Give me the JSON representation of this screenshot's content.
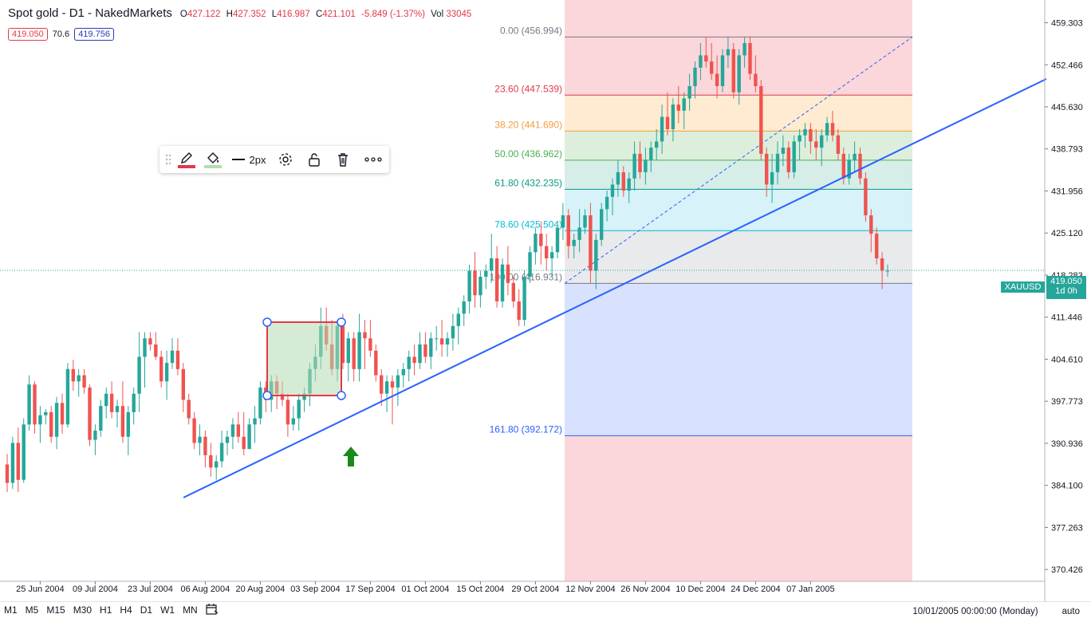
{
  "header": {
    "title": "Spot gold - D1 - NakedMarkets",
    "ohlc": [
      {
        "label": "O",
        "value": "427.122"
      },
      {
        "label": "H",
        "value": "427.352"
      },
      {
        "label": "L",
        "value": "416.987"
      },
      {
        "label": "C",
        "value": "421.101"
      }
    ],
    "change": "-5.849 (-1.37%)",
    "vol_label": "Vol",
    "vol_value": "33045"
  },
  "badges": {
    "left": "419.050",
    "mid": "70.6",
    "right": "419.756",
    "left_color": "#e0394a",
    "right_color": "#2a3bb5"
  },
  "toolbar": {
    "width_label": "2px",
    "icons": [
      "drag-handle-icon",
      "pencil-icon",
      "fill-bucket-icon",
      "line-style-icon",
      "gear-icon",
      "unlock-icon",
      "trash-icon",
      "more-icon"
    ]
  },
  "timeframes": [
    "M1",
    "M5",
    "M15",
    "M30",
    "H1",
    "H4",
    "D1",
    "W1",
    "MN"
  ],
  "footer": {
    "datetime": "10/01/2005 00:00:00 (Monday)",
    "scale": "auto"
  },
  "price_label": {
    "symbol": "XAUUSD",
    "price": "419.050",
    "timer": "1d 0h"
  },
  "chart_data": {
    "type": "candlestick",
    "symbol": "XAUUSD",
    "timeframe": "D1",
    "y_range": [
      368.5,
      463.0
    ],
    "y_ticks": [
      "459.303",
      "452.466",
      "445.630",
      "438.793",
      "431.956",
      "425.120",
      "418.283",
      "411.446",
      "404.610",
      "397.773",
      "390.936",
      "384.100",
      "377.263",
      "370.426"
    ],
    "x_ticks": [
      "25 Jun 2004",
      "09 Jul 2004",
      "23 Jul 2004",
      "06 Aug 2004",
      "20 Aug 2004",
      "03 Sep 2004",
      "17 Sep 2004",
      "01 Oct 2004",
      "15 Oct 2004",
      "29 Oct 2004",
      "12 Nov 2004",
      "26 Nov 2004",
      "10 Dec 2004",
      "24 Dec 2004",
      "07 Jan 2005"
    ],
    "current_price": 419.05,
    "fibonacci": {
      "levels": [
        {
          "ratio": "0.00",
          "price": 456.994,
          "label": "0.00 (456.994)",
          "color": "#787b86"
        },
        {
          "ratio": "23.60",
          "price": 447.539,
          "label": "23.60 (447.539)",
          "color": "#e0394a"
        },
        {
          "ratio": "38.20",
          "price": 441.69,
          "label": "38.20 (441.690)",
          "color": "#f29d38"
        },
        {
          "ratio": "50.00",
          "price": 436.962,
          "label": "50.00 (436.962)",
          "color": "#4caf50"
        },
        {
          "ratio": "61.80",
          "price": 432.235,
          "label": "61.80 (432.235)",
          "color": "#089981"
        },
        {
          "ratio": "78.60",
          "price": 425.504,
          "label": "78.60 (425.504)",
          "color": "#00bcd4"
        },
        {
          "ratio": "100.00",
          "price": 416.931,
          "label": "100.00 (416.931)",
          "color": "#787b86"
        },
        {
          "ratio": "161.80",
          "price": 392.172,
          "label": "161.80 (392.172)",
          "color": "#2962ff"
        }
      ],
      "zone_colors": [
        "#f7a5ad",
        "#fcd39a",
        "#b4dbb2",
        "#a5d8cc",
        "#a6e3ef",
        "#cfd0d4",
        "#a9bdfb",
        "#f7a5ad"
      ]
    },
    "candles": [
      [
        387.5,
        389.2,
        383,
        384.5
      ],
      [
        384.5,
        392,
        383.5,
        391
      ],
      [
        391,
        393.5,
        383,
        385
      ],
      [
        385,
        395,
        384.5,
        394
      ],
      [
        394,
        402,
        393,
        400.5
      ],
      [
        400.5,
        401,
        392.5,
        394
      ],
      [
        394,
        397,
        391,
        395.5
      ],
      [
        395.5,
        396.5,
        394,
        396
      ],
      [
        396,
        397,
        391,
        392
      ],
      [
        392,
        398.5,
        390,
        397.5
      ],
      [
        397.5,
        399,
        392.5,
        394
      ],
      [
        394,
        404,
        393.5,
        403
      ],
      [
        403,
        404.5,
        399.5,
        401
      ],
      [
        401,
        403,
        398.5,
        402
      ],
      [
        402,
        403,
        399,
        400
      ],
      [
        400,
        400.5,
        390.5,
        391.5
      ],
      [
        391.5,
        394,
        389,
        393
      ],
      [
        393,
        398,
        392,
        397
      ],
      [
        397,
        400,
        395,
        399
      ],
      [
        399,
        401,
        395,
        396
      ],
      [
        396,
        398,
        393.5,
        397
      ],
      [
        397,
        401,
        391,
        392
      ],
      [
        392,
        397,
        389,
        396
      ],
      [
        396,
        400,
        394,
        399
      ],
      [
        399,
        409,
        396,
        405
      ],
      [
        405,
        409,
        400,
        408
      ],
      [
        408,
        409,
        406,
        407
      ],
      [
        407,
        409,
        404.5,
        405
      ],
      [
        405,
        406,
        400,
        401
      ],
      [
        401,
        406,
        398,
        404
      ],
      [
        404,
        408,
        403,
        406
      ],
      [
        406,
        408,
        402,
        403
      ],
      [
        403,
        404,
        396,
        398
      ],
      [
        398,
        399,
        394,
        395
      ],
      [
        395,
        396,
        390,
        391
      ],
      [
        391,
        394,
        389,
        392
      ],
      [
        392,
        393,
        387,
        389
      ],
      [
        389,
        391,
        385.5,
        387
      ],
      [
        387,
        389,
        385,
        388
      ],
      [
        388,
        393,
        387,
        391
      ],
      [
        391,
        393,
        389,
        392
      ],
      [
        392,
        395,
        390,
        394
      ],
      [
        394,
        396,
        391,
        392
      ],
      [
        392,
        396,
        389,
        390
      ],
      [
        390,
        395,
        390,
        394
      ],
      [
        394,
        397,
        391,
        395
      ],
      [
        395,
        401,
        394,
        400
      ],
      [
        400,
        401,
        396,
        398
      ],
      [
        398,
        402,
        396,
        401
      ],
      [
        401,
        402,
        396.5,
        399
      ],
      [
        399,
        401,
        397,
        398
      ],
      [
        398,
        399,
        392,
        394
      ],
      [
        394,
        397,
        393,
        395
      ],
      [
        395,
        399,
        393,
        398
      ],
      [
        398,
        400,
        396,
        399
      ],
      [
        399,
        404,
        397,
        403
      ],
      [
        403,
        407,
        401,
        405
      ],
      [
        405,
        413,
        403,
        410
      ],
      [
        410,
        413,
        406,
        407
      ],
      [
        407,
        411,
        402,
        403
      ],
      [
        403,
        411,
        401,
        410
      ],
      [
        410,
        412,
        403,
        404
      ],
      [
        404,
        409,
        401,
        408
      ],
      [
        408,
        409,
        401,
        403
      ],
      [
        403,
        412,
        401,
        409
      ],
      [
        409,
        411,
        403,
        408
      ],
      [
        408,
        411,
        405,
        406
      ],
      [
        406,
        407,
        401,
        402
      ],
      [
        402,
        403,
        397,
        399
      ],
      [
        399,
        402,
        396,
        401
      ],
      [
        401,
        402,
        394,
        400
      ],
      [
        400,
        403,
        397,
        402
      ],
      [
        402,
        404,
        400,
        403
      ],
      [
        403,
        406,
        401,
        405
      ],
      [
        405,
        407,
        402,
        404
      ],
      [
        404,
        409,
        403,
        407
      ],
      [
        407,
        409,
        404,
        405
      ],
      [
        405,
        409,
        403,
        408
      ],
      [
        408,
        410,
        406,
        408
      ],
      [
        408,
        411,
        405,
        407
      ],
      [
        407,
        409,
        405,
        408
      ],
      [
        408,
        412,
        406,
        410
      ],
      [
        410,
        413,
        407,
        412
      ],
      [
        412,
        415,
        410,
        414
      ],
      [
        414,
        420,
        412,
        419
      ],
      [
        419,
        422,
        413,
        415
      ],
      [
        415,
        419,
        413,
        418
      ],
      [
        418,
        420,
        416,
        419
      ],
      [
        419,
        425,
        417,
        421
      ],
      [
        421,
        423,
        413,
        414
      ],
      [
        414,
        421,
        413,
        420
      ],
      [
        420,
        423,
        415,
        417
      ],
      [
        417,
        418,
        413,
        414
      ],
      [
        414,
        416,
        410,
        411
      ],
      [
        411,
        419,
        410,
        418
      ],
      [
        418,
        423,
        417,
        422
      ],
      [
        422,
        426,
        420,
        425
      ],
      [
        425,
        427,
        420,
        423
      ],
      [
        423,
        425,
        419,
        421
      ],
      [
        421,
        423,
        418,
        422
      ],
      [
        422,
        427,
        421,
        426
      ],
      [
        426,
        430,
        424,
        428
      ],
      [
        428,
        429,
        421,
        423
      ],
      [
        423,
        425,
        421,
        424
      ],
      [
        424,
        429,
        422,
        426
      ],
      [
        426,
        429,
        425,
        428
      ],
      [
        428,
        430,
        417,
        419
      ],
      [
        419,
        425,
        416,
        424
      ],
      [
        424,
        430,
        423,
        429
      ],
      [
        429,
        432,
        427,
        431
      ],
      [
        431,
        434,
        428,
        433
      ],
      [
        433,
        437,
        431,
        435
      ],
      [
        435,
        436,
        431,
        432
      ],
      [
        432,
        435,
        430,
        434
      ],
      [
        434,
        440,
        432,
        438
      ],
      [
        438,
        440,
        434,
        435
      ],
      [
        435,
        439,
        433,
        437
      ],
      [
        437,
        440,
        435,
        439
      ],
      [
        439,
        442,
        437,
        440
      ],
      [
        440,
        446,
        438,
        444
      ],
      [
        444,
        448,
        441,
        442
      ],
      [
        442,
        447,
        440,
        446
      ],
      [
        446,
        449,
        443,
        445
      ],
      [
        445,
        448,
        442,
        447
      ],
      [
        447,
        451,
        445,
        449
      ],
      [
        449,
        453,
        447,
        452
      ],
      [
        452,
        456,
        450,
        454
      ],
      [
        454,
        457,
        452,
        453
      ],
      [
        453,
        456,
        450,
        451
      ],
      [
        451,
        454,
        447,
        449
      ],
      [
        449,
        455,
        448,
        454
      ],
      [
        454,
        457,
        452,
        455
      ],
      [
        455,
        456,
        447,
        448
      ],
      [
        448,
        455,
        446,
        454
      ],
      [
        454,
        457,
        452,
        456
      ],
      [
        456,
        457,
        450,
        451
      ],
      [
        451,
        454,
        448,
        449
      ],
      [
        449,
        450,
        437,
        438
      ],
      [
        438,
        439,
        431,
        433
      ],
      [
        433,
        438,
        430,
        435
      ],
      [
        435,
        440,
        433,
        438
      ],
      [
        438,
        441,
        436,
        439
      ],
      [
        439,
        440,
        434,
        435
      ],
      [
        435,
        441,
        434,
        440
      ],
      [
        440,
        442,
        437,
        441
      ],
      [
        441,
        443,
        439,
        442
      ],
      [
        442,
        443,
        438,
        440
      ],
      [
        440,
        442,
        437,
        439
      ],
      [
        439,
        442,
        436,
        441
      ],
      [
        441,
        444,
        440,
        443
      ],
      [
        443,
        445,
        440,
        441
      ],
      [
        441,
        442,
        437,
        438
      ],
      [
        438,
        439,
        433,
        434
      ],
      [
        434,
        438,
        433,
        437
      ],
      [
        437,
        440,
        435,
        438
      ],
      [
        438,
        439,
        433,
        434
      ],
      [
        434,
        435,
        427,
        428
      ],
      [
        428,
        429,
        422,
        425
      ],
      [
        425,
        426,
        420,
        421
      ],
      [
        421,
        422,
        416,
        419
      ],
      [
        419,
        420,
        418,
        419
      ]
    ]
  }
}
